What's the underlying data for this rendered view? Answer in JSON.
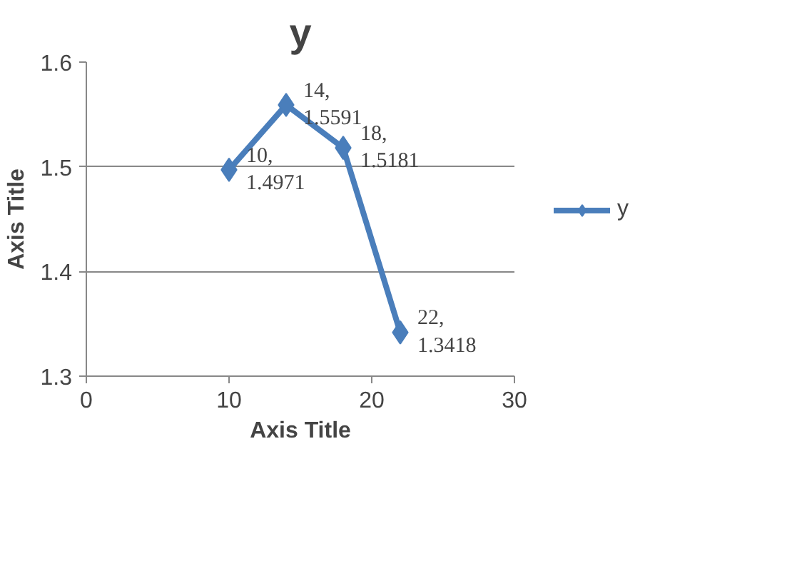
{
  "chart_data": {
    "type": "line",
    "title": "y",
    "xlabel": "Axis Title",
    "ylabel": "Axis Title",
    "x": [
      10,
      14,
      18,
      22
    ],
    "series": [
      {
        "name": "y",
        "color": "#4a7ebb",
        "values": [
          1.4971,
          1.5591,
          1.5181,
          1.3418
        ],
        "value_labels": [
          "10, 1.4971",
          "14, 1.5591",
          "18, 1.5181",
          "22, 1.3418"
        ]
      }
    ],
    "xlim": [
      0,
      30
    ],
    "xticks": [
      0,
      10,
      20,
      30
    ],
    "ylim": [
      1.3,
      1.6
    ],
    "yticks": [
      {
        "value": 1.3,
        "label": "1.3"
      },
      {
        "value": 1.4,
        "label": "1.4"
      },
      {
        "value": 1.5,
        "label": "1.5"
      },
      {
        "value": 1.6,
        "label": "1.6"
      }
    ],
    "grid": "y",
    "legend": "right",
    "marker": "diamond",
    "line_style": "solid"
  }
}
